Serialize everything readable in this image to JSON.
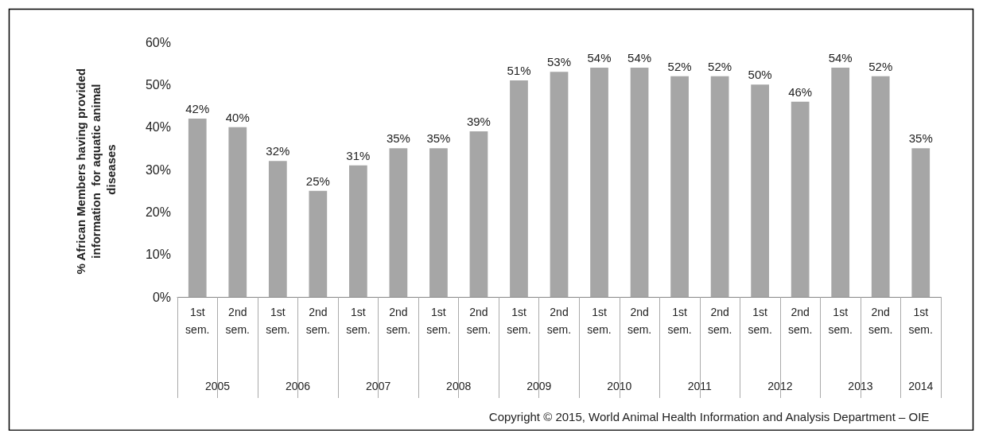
{
  "chart_data": {
    "type": "bar",
    "ylabel": "% African Members having provided information  for aquatic animal diseases",
    "categories": [
      "1st sem.",
      "2nd sem.",
      "1st sem.",
      "2nd sem.",
      "1st sem.",
      "2nd sem.",
      "1st sem.",
      "2nd sem.",
      "1st sem.",
      "2nd sem.",
      "1st sem.",
      "2nd sem.",
      "1st sem.",
      "2nd sem.",
      "1st sem.",
      "2nd sem.",
      "1st sem.",
      "2nd sem.",
      "1st sem."
    ],
    "values": [
      42,
      40,
      32,
      25,
      31,
      35,
      35,
      39,
      51,
      53,
      54,
      54,
      52,
      52,
      50,
      46,
      54,
      52,
      35
    ],
    "value_labels": [
      "42%",
      "40%",
      "32%",
      "25%",
      "31%",
      "35%",
      "35%",
      "39%",
      "51%",
      "53%",
      "54%",
      "54%",
      "52%",
      "52%",
      "50%",
      "46%",
      "54%",
      "52%",
      "35%"
    ],
    "color": "#a6a6a6",
    "ylim": [
      0,
      60
    ],
    "yticks": [
      {
        "value": 0,
        "label": "0%"
      },
      {
        "value": 10,
        "label": "10%"
      },
      {
        "value": 20,
        "label": "20%"
      },
      {
        "value": 30,
        "label": "30%"
      },
      {
        "value": 40,
        "label": "40%"
      },
      {
        "value": 50,
        "label": "50%"
      },
      {
        "value": 60,
        "label": "60%"
      }
    ],
    "annotations": [
      "2005",
      "2006",
      "2007",
      "2008",
      "2009",
      "2010",
      "2011",
      "2012",
      "2013",
      "2014",
      "Copyright © 2015, World Animal Health Information and Analysis Department – OIE"
    ],
    "grid": false
  }
}
